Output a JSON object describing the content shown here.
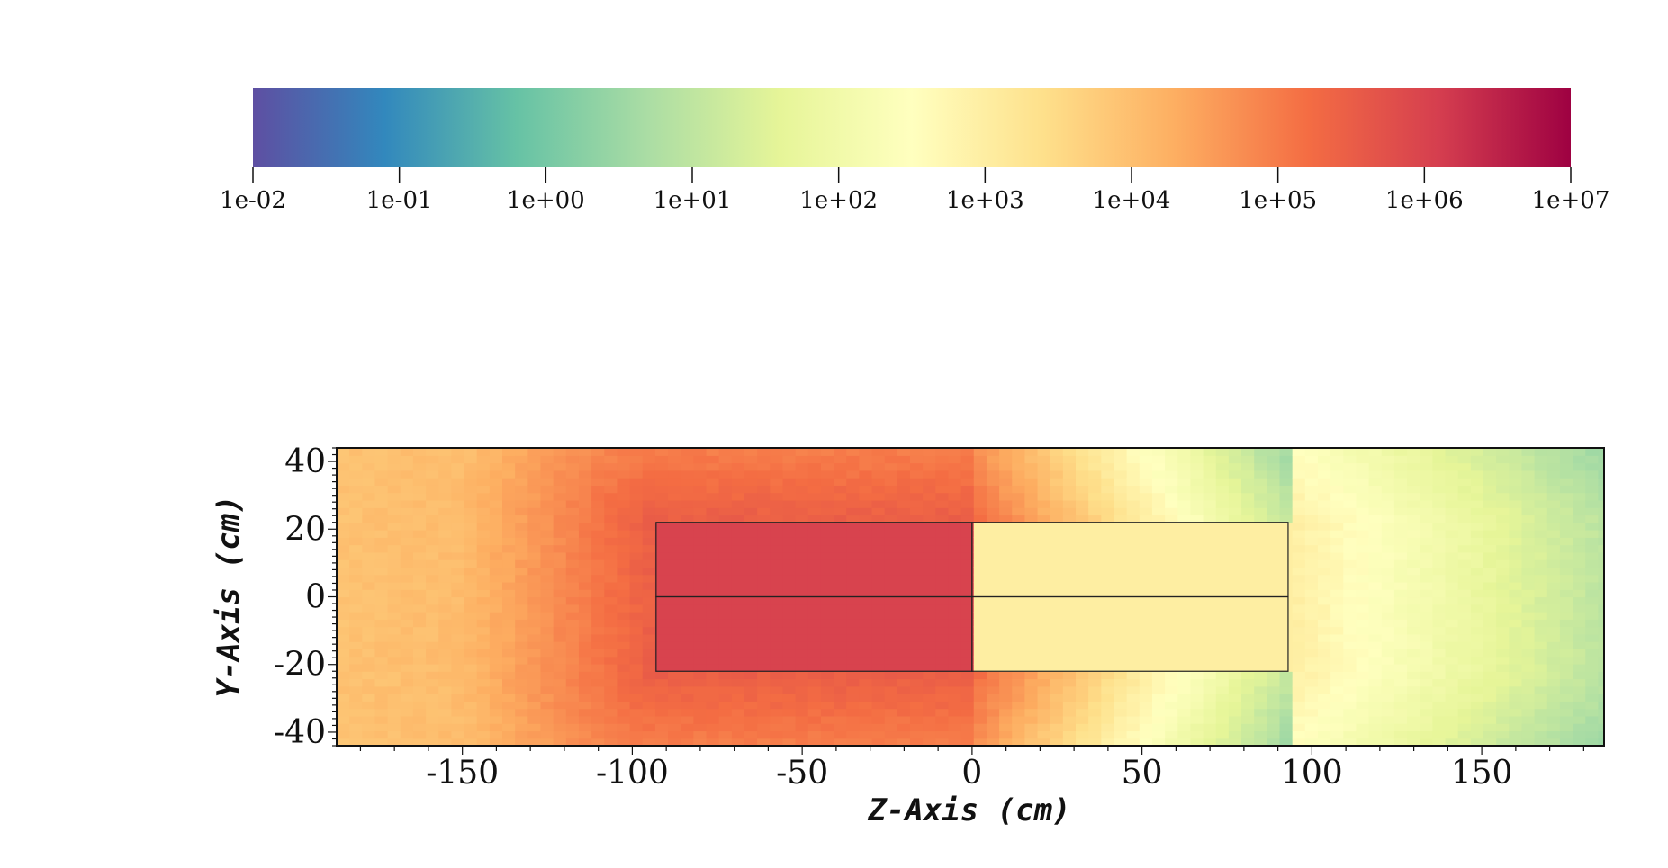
{
  "chart_data": {
    "type": "heatmap",
    "title": "",
    "xlabel": "Z-Axis (cm)",
    "ylabel": "Y-Axis (cm)",
    "xlim": [
      -187,
      186
    ],
    "ylim": [
      -44,
      44
    ],
    "xticks": [
      -150,
      -100,
      -50,
      0,
      50,
      100,
      150
    ],
    "yticks": [
      40,
      20,
      0,
      -20,
      -40
    ],
    "x_tick_labels": [
      "-150",
      "-100",
      "-50",
      "0",
      "50",
      "100",
      "150"
    ],
    "y_tick_labels": [
      "40",
      "20",
      "0",
      "-20",
      "-40"
    ],
    "colorbar": {
      "scale": "log",
      "colormap": "Spectral_r",
      "range": [
        0.01,
        10000000
      ],
      "colors": [
        "#5e4fa2",
        "#3288bd",
        "#66c2a5",
        "#abdda4",
        "#e6f598",
        "#ffffbf",
        "#fee08b",
        "#fdae61",
        "#f46d43",
        "#d53e4f",
        "#9e0142"
      ],
      "tick_values": [
        0.01,
        0.1,
        1,
        10,
        100,
        1000,
        10000,
        100000,
        1000000,
        10000000
      ],
      "tick_labels": [
        "1e-02",
        "1e-01",
        "1e+00",
        "1e+01",
        "1e+02",
        "1e+03",
        "1e+04",
        "1e+05",
        "1e+06",
        "1e+07"
      ]
    },
    "field_description": "log10 of mapped value over (z, y); peak ~1e6 in source block z in [-93, 0], y in [-22, 22]; ~1e3 in block z in [0, 93]; decreasing to ~1e0 toward +z edge",
    "regions": [
      {
        "z": [
          -93,
          0
        ],
        "y": [
          0,
          22
        ]
      },
      {
        "z": [
          -93,
          0
        ],
        "y": [
          -22,
          0
        ]
      },
      {
        "z": [
          0,
          93
        ],
        "y": [
          0,
          22
        ]
      },
      {
        "z": [
          0,
          93
        ],
        "y": [
          -22,
          0
        ]
      }
    ]
  }
}
